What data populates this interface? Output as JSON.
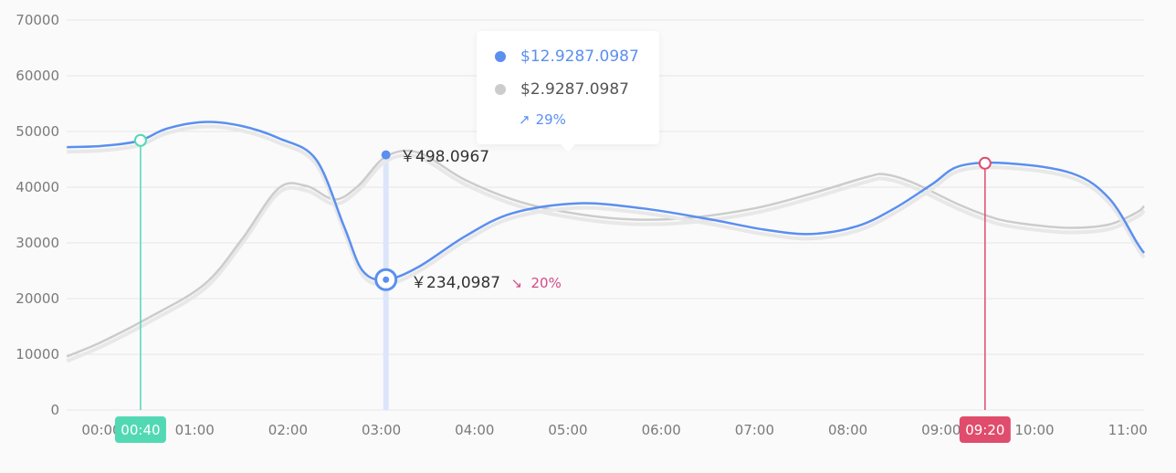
{
  "chart_data": {
    "type": "line",
    "y_ticks": [
      "0",
      "10000",
      "20000",
      "30000",
      "40000",
      "50000",
      "60000",
      "70000"
    ],
    "ylim": [
      0,
      70000
    ],
    "x_ticks": [
      "00:00",
      "01:00",
      "02:00",
      "03:00",
      "04:00",
      "05:00",
      "06:00",
      "07:00",
      "08:00",
      "09:00",
      "10:00",
      "11:00"
    ],
    "xlim_hours": [
      -0.37,
      11.2
    ],
    "grid": true,
    "series": [
      {
        "color": "#5b8ff0",
        "points": [
          [
            -0.37,
            47200
          ],
          [
            0,
            47400
          ],
          [
            0.4,
            48300
          ],
          [
            0.7,
            50500
          ],
          [
            1.1,
            51700
          ],
          [
            1.5,
            51000
          ],
          [
            1.9,
            48800
          ],
          [
            2.3,
            45000
          ],
          [
            2.6,
            33000
          ],
          [
            2.8,
            25000
          ],
          [
            3.05,
            23400
          ],
          [
            3.4,
            25700
          ],
          [
            3.9,
            31200
          ],
          [
            4.4,
            35300
          ],
          [
            5.1,
            37100
          ],
          [
            5.8,
            36200
          ],
          [
            6.5,
            34300
          ],
          [
            7.1,
            32400
          ],
          [
            7.6,
            31600
          ],
          [
            8.1,
            33000
          ],
          [
            8.5,
            36200
          ],
          [
            8.9,
            40500
          ],
          [
            9.2,
            43800
          ],
          [
            9.7,
            44300
          ],
          [
            10.4,
            42500
          ],
          [
            10.8,
            38000
          ],
          [
            11.1,
            30000
          ],
          [
            11.3,
            28200
          ]
        ]
      },
      {
        "color": "#cccccc",
        "points": [
          [
            -0.37,
            9600
          ],
          [
            0,
            12200
          ],
          [
            0.5,
            16500
          ],
          [
            1.1,
            22500
          ],
          [
            1.5,
            30500
          ],
          [
            1.9,
            39800
          ],
          [
            2.2,
            40200
          ],
          [
            2.5,
            37800
          ],
          [
            2.75,
            40200
          ],
          [
            3.05,
            45500
          ],
          [
            3.4,
            46200
          ],
          [
            3.9,
            41300
          ],
          [
            4.5,
            37300
          ],
          [
            5.1,
            35200
          ],
          [
            5.7,
            34200
          ],
          [
            6.3,
            34500
          ],
          [
            7.0,
            36200
          ],
          [
            7.6,
            38800
          ],
          [
            8.2,
            41800
          ],
          [
            8.4,
            42300
          ],
          [
            8.7,
            40800
          ],
          [
            9.2,
            36800
          ],
          [
            9.6,
            34300
          ],
          [
            10.0,
            33200
          ],
          [
            10.4,
            32700
          ],
          [
            10.8,
            33300
          ],
          [
            11.1,
            35500
          ],
          [
            11.3,
            36600
          ]
        ]
      }
    ],
    "markers": [
      {
        "label": "00:40",
        "x": 0.42,
        "y": 48400,
        "color": "#52d9b4"
      },
      {
        "label": "09:20",
        "x": 9.47,
        "y": 44300,
        "color": "#e04c6c"
      }
    ],
    "focus": {
      "x": 3.05,
      "band_color": "#dbe6fb",
      "upper_y": 45800,
      "lower_y": 23400
    }
  },
  "tooltip": {
    "row1_value": "$12.9287.0987",
    "row2_value": "$2.9287.0987",
    "row3_arrow": "↗",
    "row3_pct": "29%"
  },
  "callouts": {
    "upper_label": "￥498.0967",
    "lower_label": "￥234,0987",
    "lower_arrow": "↘",
    "lower_pct": "20%"
  }
}
